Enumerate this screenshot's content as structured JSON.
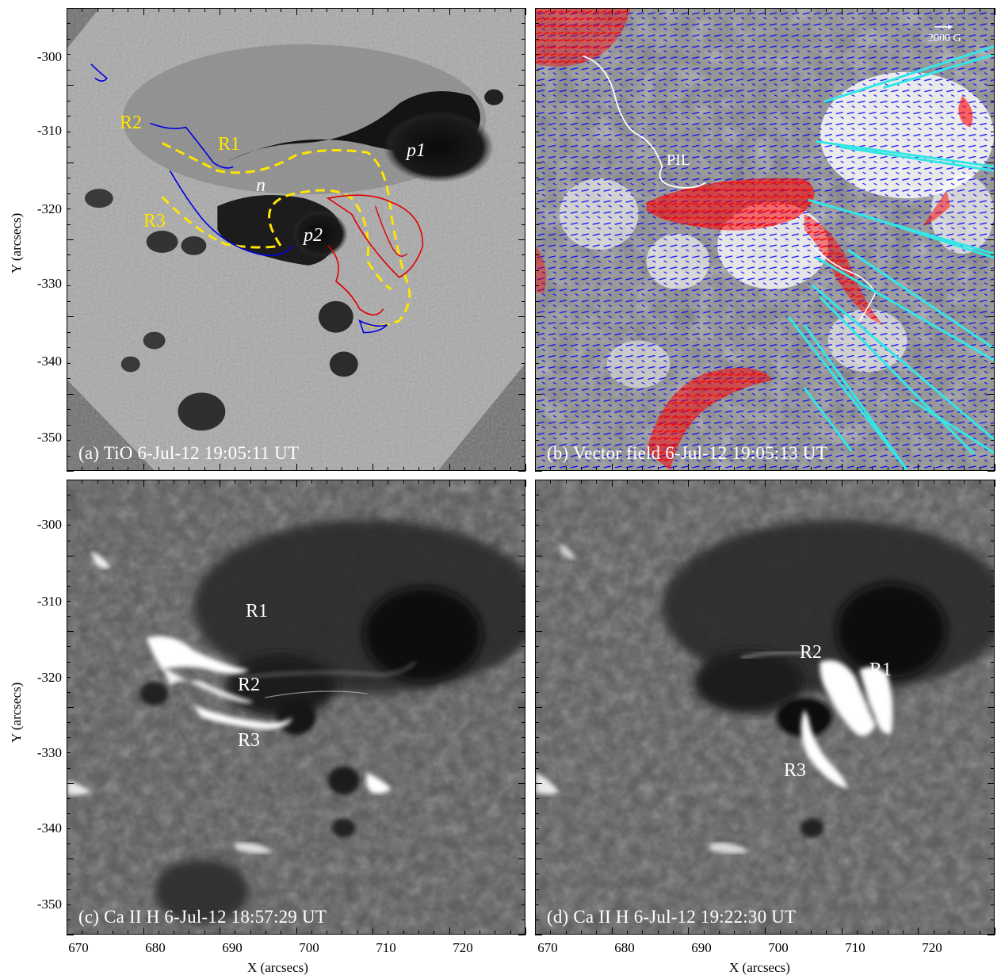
{
  "panels": {
    "a": {
      "label": "(a) TiO 6-Jul-12 19:05:11 UT",
      "annotations": {
        "r1": "R1",
        "r2": "R2",
        "r3": "R3",
        "n": "n",
        "p1": "p1",
        "p2": "p2"
      }
    },
    "b": {
      "label": "(b) Vector field 6-Jul-12 19:05:13 UT",
      "annotations": {
        "pil": "PIL"
      },
      "scale_label": "2000 G"
    },
    "c": {
      "label": "(c) Ca II H 6-Jul-12 18:57:29 UT",
      "annotations": {
        "r1": "R1",
        "r2": "R2",
        "r3": "R3"
      }
    },
    "d": {
      "label": "(d) Ca II H 6-Jul-12 19:22:30 UT",
      "annotations": {
        "r1": "R1",
        "r2": "R2",
        "r3": "R3"
      }
    }
  },
  "axes": {
    "ylabel": "Y (arcsecs)",
    "xlabel": "X (arcsecs)",
    "yticks": [
      "-300",
      "-310",
      "-320",
      "-330",
      "-340",
      "-350"
    ],
    "xticks": [
      "670",
      "680",
      "690",
      "700",
      "710",
      "720"
    ]
  },
  "colors": {
    "contour_positive": "#e00000",
    "contour_negative": "#0000e0",
    "polarity_line": "#ffe600",
    "vector_positive": "#ff0000",
    "vector_negative": "#0000ff",
    "field_lines": "#33e6e6",
    "pil": "#ffffff"
  }
}
